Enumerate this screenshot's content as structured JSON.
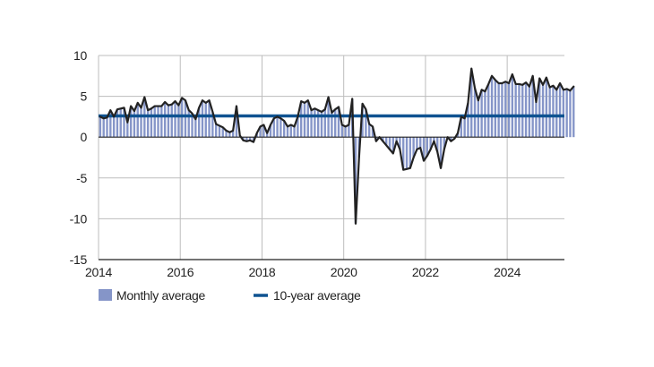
{
  "chart_data": {
    "type": "bar",
    "title": "",
    "xlabel": "",
    "ylabel": "",
    "ylim": [
      -15,
      10
    ],
    "xlim": [
      2014,
      2025.4
    ],
    "x_ticks": [
      "2014",
      "2016",
      "2018",
      "2020",
      "2022",
      "2024"
    ],
    "y_ticks": [
      "10",
      "5",
      "0",
      "-5",
      "-10",
      "-15"
    ],
    "colors": {
      "bars": "#8595c8",
      "line": "#222222",
      "avg": "#0f5391",
      "grid": "#bdbdbd",
      "axis": "#222222"
    },
    "legend": [
      {
        "label": "Monthly average",
        "kind": "bar"
      },
      {
        "label": "10-year average",
        "kind": "line"
      }
    ],
    "ten_year_average": 2.6,
    "series": [
      {
        "name": "Monthly average",
        "start": "2014-01",
        "values": [
          2.5,
          2.3,
          2.4,
          3.3,
          2.5,
          3.4,
          3.5,
          3.6,
          1.8,
          3.8,
          3.2,
          4.2,
          3.6,
          4.9,
          3.3,
          3.5,
          3.8,
          3.8,
          3.8,
          4.3,
          3.9,
          4.0,
          4.4,
          3.9,
          4.8,
          4.5,
          3.3,
          2.9,
          2.2,
          3.6,
          4.5,
          4.2,
          4.5,
          3.1,
          1.6,
          1.4,
          1.2,
          0.8,
          0.6,
          0.8,
          3.8,
          0.2,
          -0.4,
          -0.5,
          -0.4,
          -0.6,
          0.5,
          1.3,
          1.5,
          0.5,
          1.5,
          2.3,
          2.5,
          2.3,
          2.0,
          1.3,
          1.5,
          1.3,
          2.5,
          4.4,
          4.2,
          4.5,
          3.3,
          3.5,
          3.3,
          3.1,
          3.4,
          4.9,
          3.0,
          3.4,
          3.7,
          1.5,
          1.3,
          1.5,
          4.7,
          -10.6,
          -2.5,
          4.1,
          3.4,
          1.6,
          1.3,
          -0.5,
          0.0,
          -0.5,
          -1.0,
          -1.5,
          -2.0,
          -0.5,
          -1.5,
          -4.0,
          -3.9,
          -3.8,
          -2.5,
          -1.5,
          -1.3,
          -2.9,
          -2.3,
          -1.5,
          -0.5,
          -1.8,
          -3.8,
          -1.5,
          0.0,
          -0.5,
          -0.2,
          0.5,
          2.5,
          2.3,
          4.2,
          8.4,
          6.0,
          4.5,
          5.8,
          5.6,
          6.5,
          7.5,
          7.0,
          6.6,
          6.6,
          6.8,
          6.6,
          7.7,
          6.5,
          6.5,
          6.4,
          6.7,
          6.2,
          7.5,
          4.3,
          7.2,
          6.4,
          7.3,
          6.1,
          6.3,
          5.8,
          6.6,
          5.8,
          5.9,
          5.7,
          6.2
        ]
      }
    ]
  }
}
